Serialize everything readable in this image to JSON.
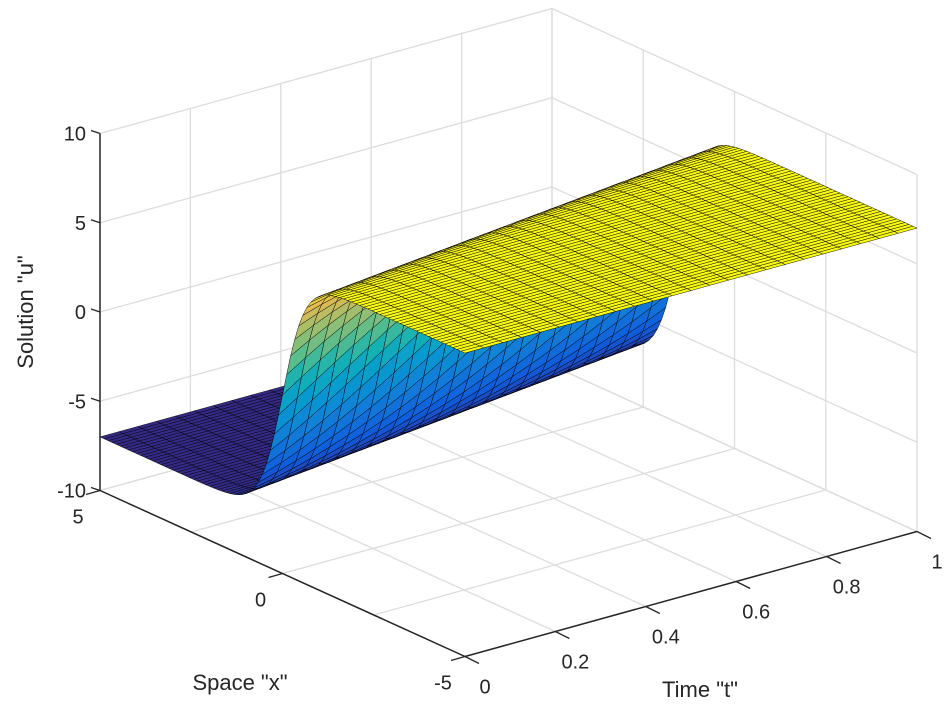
{
  "chart_data": {
    "type": "surface",
    "title": "",
    "xlabel": "Space \"x\"",
    "ylabel": "Time \"t\"",
    "zlabel": "Solution \"u\"",
    "x_range": [
      -5,
      5
    ],
    "t_range": [
      0,
      1
    ],
    "z_range": [
      -10,
      10
    ],
    "x_ticks": [
      -5,
      0,
      5
    ],
    "x_tick_labels": [
      "-5",
      "0",
      "5"
    ],
    "t_ticks": [
      0,
      0.2,
      0.4,
      0.6,
      0.8,
      1
    ],
    "t_tick_labels": [
      "0",
      "0.2",
      "0.4",
      "0.6",
      "0.8",
      "1"
    ],
    "z_ticks": [
      -10,
      -5,
      0,
      5,
      10
    ],
    "z_tick_labels": [
      "-10",
      "-5",
      "0",
      "5",
      "10"
    ],
    "grid": true,
    "colormap": "parula",
    "surface_description": "Traveling kink/front solution: u ≈ -7 for large x and ≈ +7 for small x, smooth tanh-like transition whose center moves from x≈0 at t=0 to x≈1.5 at t=1",
    "surface_model": {
      "amplitude": 7,
      "center_t0": 0.0,
      "speed": 1.5,
      "steepness": 1.6
    },
    "samples": {
      "x": [
        -5,
        -2.5,
        -1,
        0,
        1,
        2.5,
        5
      ],
      "t0_u": [
        7,
        7,
        6.7,
        0,
        -6.7,
        -7,
        -7
      ],
      "t1_u": [
        7,
        7,
        7,
        6.9,
        2.5,
        -6.9,
        -7
      ]
    }
  }
}
